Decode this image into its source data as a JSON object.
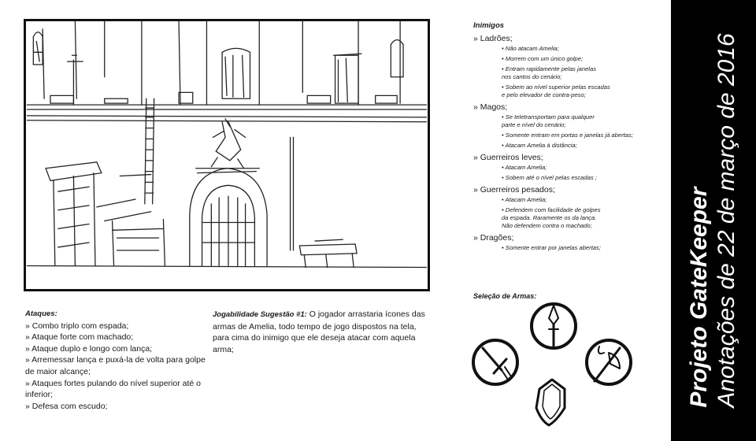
{
  "ataques": {
    "title": "Ataques:",
    "items": [
      "» Combo triplo com espada;",
      "» Ataque forte com machado;",
      "» Ataque duplo e longo com lança;",
      "» Arremessar lança e puxá-la de volta para golpe de maior alcançe;",
      "» Ataques fortes pulando do nível superior até o inferior;",
      "» Defesa com escudo;"
    ]
  },
  "jogabilidade": {
    "title": "Jogabilidade Sugestão #1:",
    "text": "O jogador arrastaria ícones das armas de Amelia, todo tempo de jogo dispostos na tela, para cima do inimigo que ele deseja atacar com aquela arma;"
  },
  "inimigos": {
    "title": "Inimigos",
    "categories": [
      {
        "name": "» Ladrões;",
        "notes": [
          [
            "Não atacam Amelia;"
          ],
          [
            "Morrem com um único golpe;"
          ],
          [
            "Entram rapidamente pelas janelas",
            "nos cantos do cenário;"
          ],
          [
            "Sobem ao nível superior pelas escadas",
            "e pelo elevador de contra-peso;"
          ]
        ]
      },
      {
        "name": "» Magos;",
        "notes": [
          [
            "Se teletransportam para qualquer",
            "parte e nível do cenário;"
          ],
          [
            "Somente entram em portas e janelas já abertas;"
          ],
          [
            "Atacam Amelia à distância;"
          ]
        ]
      },
      {
        "name": "» Guerreiros leves;",
        "notes": [
          [
            "Atacam Amelia;"
          ],
          [
            "Sobem até o nível pelas escadas ;"
          ]
        ]
      },
      {
        "name": "» Guerreiros pesados;",
        "notes": [
          [
            "Atacam Amelia;"
          ],
          [
            "Defendem com facilidade de golpes",
            "da espada. Raramente os da lança.",
            "Não defendem contra o machado;"
          ]
        ]
      },
      {
        "name": "» Dragões;",
        "notes": [
          [
            "Somente entrar por janelas abertas;"
          ]
        ]
      }
    ]
  },
  "selecao": {
    "title": "Seleção de Armas:",
    "icons": [
      "spear-icon",
      "sword-icon",
      "axe-icon",
      "shield-icon"
    ]
  },
  "sidebar": {
    "title": "Projeto GateKeeper",
    "subtitle": "Anotações de  22 de março de 2016"
  }
}
